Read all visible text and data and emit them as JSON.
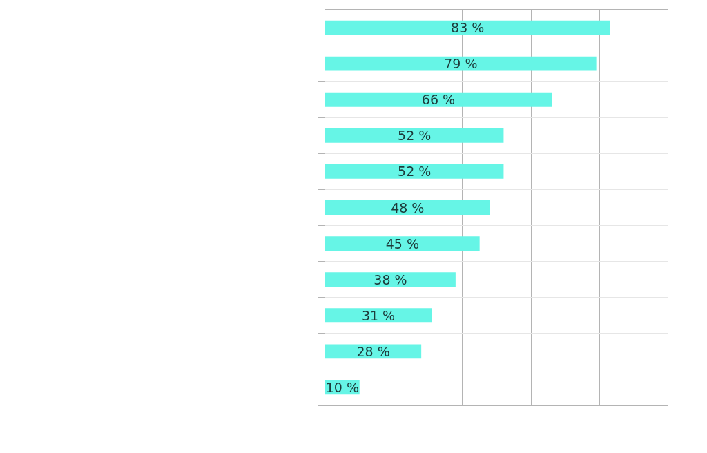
{
  "chart_data": {
    "type": "bar",
    "orientation": "horizontal",
    "categories": [
      null,
      null,
      null,
      null,
      null,
      null,
      null,
      null,
      null,
      null,
      null
    ],
    "values": [
      83,
      79,
      66,
      52,
      52,
      48,
      45,
      38,
      31,
      28,
      10
    ],
    "value_labels": [
      "83 %",
      "79 %",
      "66 %",
      "52 %",
      "52 %",
      "48 %",
      "45 %",
      "38 %",
      "31 %",
      "28 %",
      "10 %"
    ],
    "color": "#66f5e6",
    "xlim": [
      0,
      100
    ],
    "xticks": [
      {
        "value": 20,
        "label": null
      },
      {
        "value": 40,
        "label": null
      },
      {
        "value": 60,
        "label": null
      },
      {
        "value": 80,
        "label": null
      }
    ],
    "grid": true
  }
}
